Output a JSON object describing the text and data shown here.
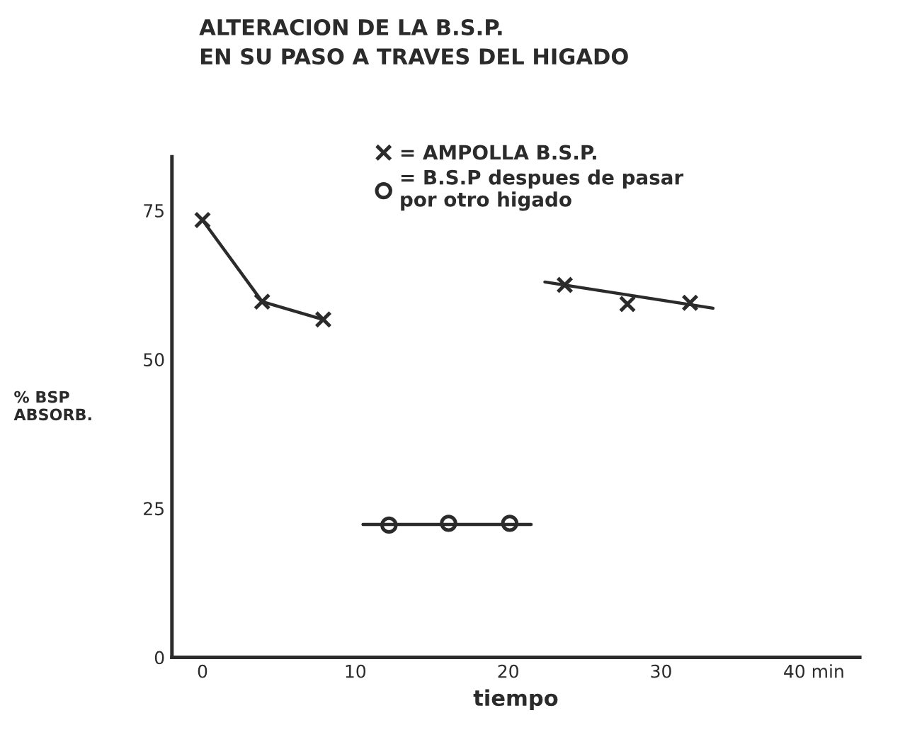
{
  "chart_data": {
    "type": "line",
    "title": "ALTERACION DE LA B.S.P.\nEN SU PASO A TRAVES DEL HIGADO",
    "xlabel": "tiempo",
    "ylabel": "% BSP\nABSORB.",
    "xlim": [
      -2,
      43
    ],
    "ylim": [
      0,
      84
    ],
    "xticks": [
      0,
      10,
      20,
      30,
      {
        "value": 40,
        "label": "40 min"
      }
    ],
    "yticks": [
      0,
      25,
      50,
      75
    ],
    "grid": false,
    "legend": "top",
    "series": [
      {
        "name": "= AMPOLLA B.S.P.",
        "color": "#2b2b2b",
        "marker": "cross",
        "x": [
          0,
          3.9,
          7.9
        ],
        "values": [
          73.4,
          59.7,
          56.7
        ]
      },
      {
        "type": "line",
        "color": "#2b2b2b",
        "marker": "none",
        "x": [
          22.4,
          33.4
        ],
        "values": [
          63,
          58.6
        ]
      },
      {
        "type": "scatter",
        "color": "#2b2b2b",
        "marker": "cross",
        "x": [
          23.7,
          27.8,
          31.9
        ],
        "values": [
          62.5,
          59.3,
          59.5
        ]
      },
      {
        "type": "line",
        "color": "#2b2b2b",
        "marker": "none",
        "x": [
          10.5,
          21.5
        ],
        "values": [
          22.3,
          22.3
        ]
      },
      {
        "type": "scatter",
        "name": "= B.S.P despues de pasar\npor otro higado",
        "color": "#2b2b2b",
        "marker": "circle",
        "x": [
          12.2,
          16.1,
          20.1
        ],
        "values": [
          22.2,
          22.5,
          22.5
        ]
      }
    ]
  }
}
